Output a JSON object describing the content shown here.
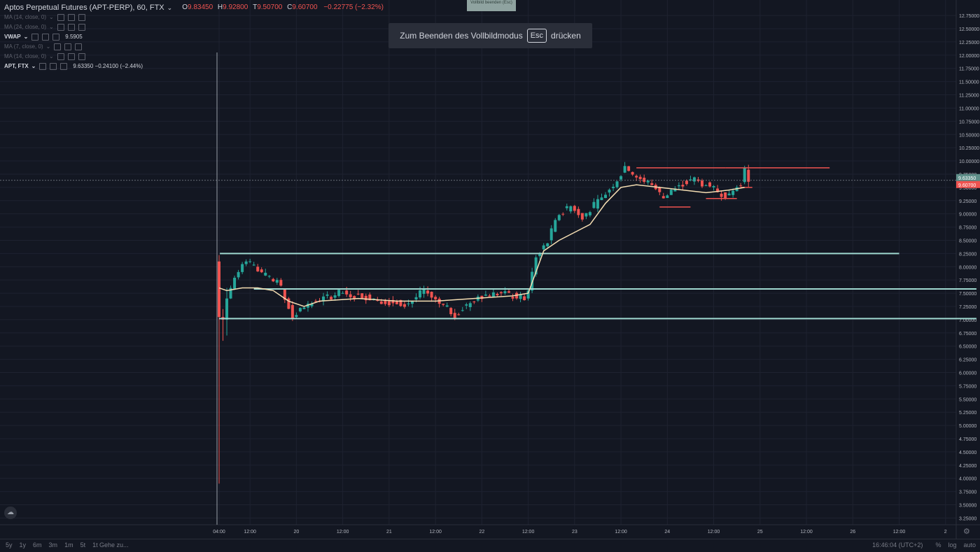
{
  "header": {
    "title": "Aptos Perpetual Futures (APT-PERP), 60, FTX",
    "ohlc": [
      {
        "k": "O",
        "v": "9.83450"
      },
      {
        "k": "H",
        "v": "9.92800"
      },
      {
        "k": "T",
        "v": "9.50700"
      },
      {
        "k": "C",
        "v": "9.60700"
      }
    ],
    "change": "−0.22775 (−2.32%)"
  },
  "indicators": [
    {
      "label": "MA (14, close, 0)",
      "value": "",
      "active": false
    },
    {
      "label": "MA (24, close, 0)",
      "value": "",
      "active": false
    },
    {
      "label": "VWAP",
      "value": "9.5905",
      "active": true
    },
    {
      "label": "MA (7, close, 0)",
      "value": "",
      "active": false
    },
    {
      "label": "MA (14, close, 0)",
      "value": "",
      "active": false
    },
    {
      "label": "APT, FTX",
      "value": "9.63350  −0.24100 (−2.44%)",
      "active": true
    }
  ],
  "top_badge": "Vollbild beenden (Esc)",
  "fullscreen_toast": {
    "before": "Zum Beenden des Vollbildmodus",
    "key": "Esc",
    "after": "drücken"
  },
  "bottom": {
    "ranges": [
      "5y",
      "1y",
      "6m",
      "3m",
      "1m",
      "5t",
      "1t"
    ],
    "goto": "Gehe zu...",
    "time": "16:46:04 (UTC+2)",
    "percent": "%",
    "log": "log",
    "auto": "auto"
  },
  "colors": {
    "up": "#26a69a",
    "down": "#ef5350",
    "bg": "#131722",
    "grid": "#1e2230",
    "vwap": "#f5deb3",
    "hline": "#9fd8d0",
    "redline": "#ef5350"
  },
  "chart_data": {
    "type": "candlestick",
    "symbol": "APT-PERP",
    "interval": "60",
    "ylim": [
      3.15,
      12.95
    ],
    "y_ticks": [
      "12.75000",
      "12.50000",
      "12.25000",
      "12.00000",
      "11.75000",
      "11.50000",
      "11.25000",
      "11.00000",
      "10.75000",
      "10.50000",
      "10.25000",
      "10.00000",
      "9.75000",
      "9.50000",
      "9.25000",
      "9.00000",
      "8.75000",
      "8.50000",
      "8.25000",
      "8.00000",
      "7.75000",
      "7.50000",
      "7.25000",
      "7.00000",
      "6.75000",
      "6.50000",
      "6.25000",
      "6.00000",
      "5.75000",
      "5.50000",
      "5.25000",
      "5.00000",
      "4.75000",
      "4.50000",
      "4.25000",
      "4.00000",
      "3.75000",
      "3.50000",
      "3.25000"
    ],
    "x_labels": [
      "04:00",
      "12:00",
      "20",
      "12:00",
      "21",
      "12:00",
      "22",
      "12:00",
      "23",
      "12:00",
      "24",
      "12:00",
      "25",
      "12:00",
      "26",
      "12:00",
      "2"
    ],
    "x_label_hours": [
      4,
      12,
      24,
      36,
      48,
      60,
      72,
      84,
      96,
      108,
      120,
      132,
      144,
      156,
      168,
      180,
      192
    ],
    "price_badges": [
      {
        "value": "9.63350",
        "kind": "symbol"
      },
      {
        "value": "9.60700",
        "kind": "last"
      }
    ],
    "horizontal_lines": [
      {
        "y": 8.25,
        "from_h": 4.2,
        "to_h": 180,
        "color": "hline"
      },
      {
        "y": 7.58,
        "from_h": 13,
        "to_h": 200,
        "color": "hline"
      },
      {
        "y": 7.02,
        "from_h": 4,
        "to_h": 200,
        "color": "hline"
      },
      {
        "y": 9.87,
        "from_h": 112,
        "to_h": 135,
        "color": "redline"
      },
      {
        "y": 9.87,
        "from_h": 135,
        "to_h": 162,
        "color": "redline"
      },
      {
        "y": 9.13,
        "from_h": 118,
        "to_h": 126,
        "color": "redline"
      },
      {
        "y": 9.29,
        "from_h": 130,
        "to_h": 138,
        "color": "redline"
      },
      {
        "y": 9.5,
        "from_h": 139,
        "to_h": 142,
        "color": "redline"
      }
    ],
    "anchors": [
      {
        "h": 4,
        "o": 8.1,
        "c": 7.05,
        "h_": 8.22,
        "l": 3.9
      },
      {
        "h": 5,
        "o": 7.05,
        "c": 7.0,
        "h_": 7.2,
        "l": 6.6
      },
      {
        "h": 6,
        "o": 7.0,
        "c": 7.4,
        "h_": 7.6,
        "l": 6.7
      },
      {
        "h": 7,
        "o": 7.4,
        "c": 7.8
      },
      {
        "h": 9,
        "o": 7.8,
        "c": 7.9
      },
      {
        "h": 10,
        "o": 7.9,
        "c": 8.05
      },
      {
        "h": 11,
        "o": 8.05,
        "c": 8.1
      },
      {
        "h": 12,
        "o": 8.1,
        "c": 7.95
      },
      {
        "h": 15,
        "o": 7.95,
        "c": 7.7
      },
      {
        "h": 19,
        "o": 7.7,
        "c": 7.75
      },
      {
        "h": 20,
        "o": 7.75,
        "c": 7.4
      },
      {
        "h": 22,
        "o": 7.4,
        "c": 7.05
      },
      {
        "h": 24,
        "o": 7.05,
        "c": 7.2
      },
      {
        "h": 26,
        "o": 7.2,
        "c": 7.35
      },
      {
        "h": 30,
        "o": 7.35,
        "c": 7.5
      },
      {
        "h": 36,
        "o": 7.5,
        "c": 7.45
      },
      {
        "h": 42,
        "o": 7.45,
        "c": 7.35
      },
      {
        "h": 48,
        "o": 7.35,
        "c": 7.3
      },
      {
        "h": 54,
        "o": 7.3,
        "c": 7.55
      },
      {
        "h": 58,
        "o": 7.55,
        "c": 7.3
      },
      {
        "h": 62,
        "o": 7.3,
        "c": 7.1
      },
      {
        "h": 66,
        "o": 7.1,
        "c": 7.45
      },
      {
        "h": 72,
        "o": 7.45,
        "c": 7.5
      },
      {
        "h": 78,
        "o": 7.5,
        "c": 7.4
      },
      {
        "h": 84,
        "o": 7.4,
        "c": 7.55
      },
      {
        "h": 85,
        "o": 7.55,
        "c": 8.2
      },
      {
        "h": 87,
        "o": 8.2,
        "c": 8.5
      },
      {
        "h": 90,
        "o": 8.5,
        "c": 9.0
      },
      {
        "h": 93,
        "o": 9.0,
        "c": 9.15
      },
      {
        "h": 96,
        "o": 9.15,
        "c": 8.95
      },
      {
        "h": 99,
        "o": 8.95,
        "c": 9.3
      },
      {
        "h": 104,
        "o": 9.3,
        "c": 9.65
      },
      {
        "h": 108,
        "o": 9.65,
        "c": 9.9
      },
      {
        "h": 110,
        "o": 9.9,
        "c": 9.7
      },
      {
        "h": 113,
        "o": 9.7,
        "c": 9.55
      },
      {
        "h": 117,
        "o": 9.55,
        "c": 9.3
      },
      {
        "h": 120,
        "o": 9.3,
        "c": 9.55
      },
      {
        "h": 124,
        "o": 9.55,
        "c": 9.65
      },
      {
        "h": 128,
        "o": 9.65,
        "c": 9.5
      },
      {
        "h": 132,
        "o": 9.5,
        "c": 9.35
      },
      {
        "h": 136,
        "o": 9.35,
        "c": 9.6
      },
      {
        "h": 140,
        "o": 9.6,
        "c": 9.87
      },
      {
        "h": 141,
        "o": 9.834,
        "c": 9.607,
        "h_": 9.928,
        "l": 9.507
      }
    ],
    "vwap": [
      [
        4,
        7.6
      ],
      [
        6,
        7.55
      ],
      [
        10,
        7.6
      ],
      [
        14,
        7.6
      ],
      [
        18,
        7.55
      ],
      [
        22,
        7.35
      ],
      [
        26,
        7.25
      ],
      [
        30,
        7.35
      ],
      [
        40,
        7.4
      ],
      [
        50,
        7.35
      ],
      [
        60,
        7.35
      ],
      [
        70,
        7.4
      ],
      [
        80,
        7.45
      ],
      [
        84,
        7.5
      ],
      [
        86,
        7.9
      ],
      [
        88,
        8.3
      ],
      [
        92,
        8.5
      ],
      [
        96,
        8.65
      ],
      [
        100,
        8.8
      ],
      [
        104,
        9.2
      ],
      [
        108,
        9.5
      ],
      [
        112,
        9.55
      ],
      [
        118,
        9.5
      ],
      [
        124,
        9.45
      ],
      [
        130,
        9.4
      ],
      [
        136,
        9.45
      ],
      [
        140,
        9.5
      ]
    ]
  }
}
